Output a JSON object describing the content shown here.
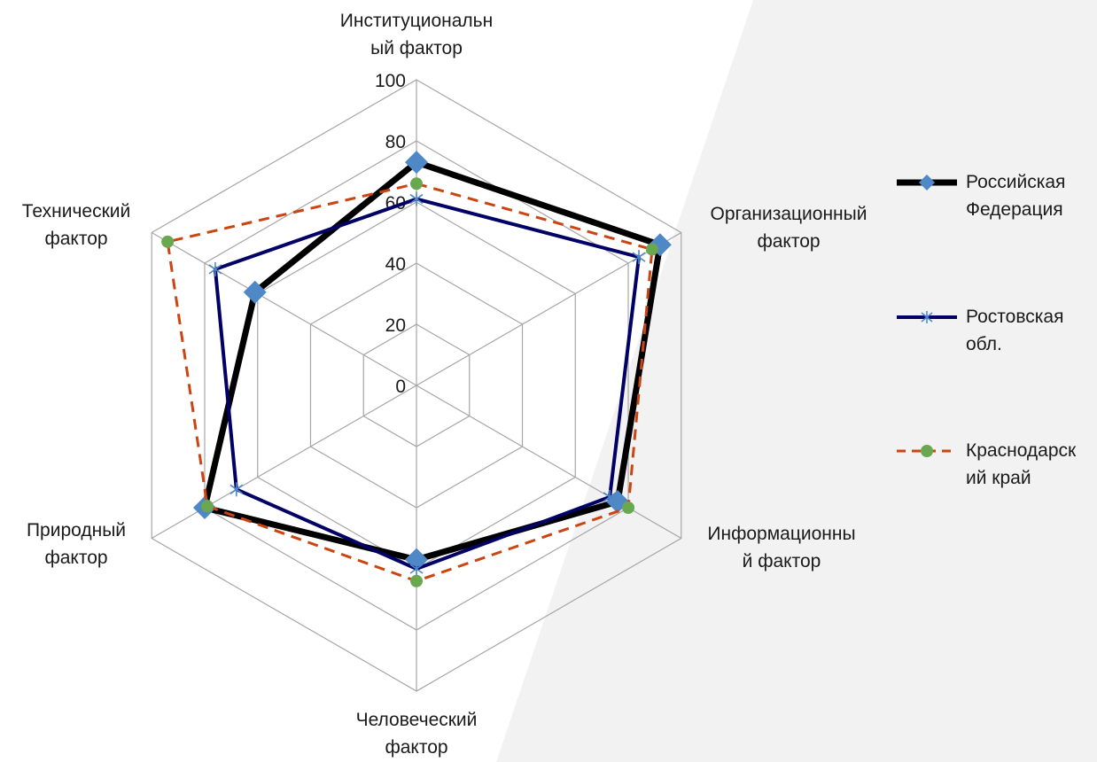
{
  "chart_data": {
    "type": "radar",
    "title": "",
    "axes": [
      {
        "label_lines": [
          "Институциональн",
          "ый фактор"
        ]
      },
      {
        "label_lines": [
          "Организационный",
          "фактор"
        ]
      },
      {
        "label_lines": [
          "Информационны",
          "й фактор"
        ]
      },
      {
        "label_lines": [
          "Человеческий",
          "фактор"
        ]
      },
      {
        "label_lines": [
          "Природный",
          "фактор"
        ]
      },
      {
        "label_lines": [
          "Технический",
          "фактор"
        ]
      }
    ],
    "rlim": [
      0,
      100
    ],
    "ticks": [
      "0",
      "20",
      "40",
      "60",
      "80",
      "100"
    ],
    "grid": true,
    "legend_position": "right",
    "series": [
      {
        "name_lines": [
          "Российская",
          "Федерация"
        ],
        "values": [
          73,
          92,
          76,
          57,
          80,
          61
        ],
        "color": "#000000",
        "marker": "diamond",
        "marker_color": "#4f88c6",
        "line_style": "solid"
      },
      {
        "name_lines": [
          "Ростовская",
          "обл."
        ],
        "values": [
          61,
          84,
          73,
          60,
          68,
          76
        ],
        "color": "#000066",
        "marker": "star",
        "marker_color": "#4f88c6",
        "line_style": "solid"
      },
      {
        "name_lines": [
          "Краснодарск",
          "ий край"
        ],
        "values": [
          66,
          89,
          80,
          64,
          79,
          94
        ],
        "color": "#cc4411",
        "marker": "circle",
        "marker_color": "#6aa84f",
        "line_style": "dashed"
      }
    ]
  }
}
